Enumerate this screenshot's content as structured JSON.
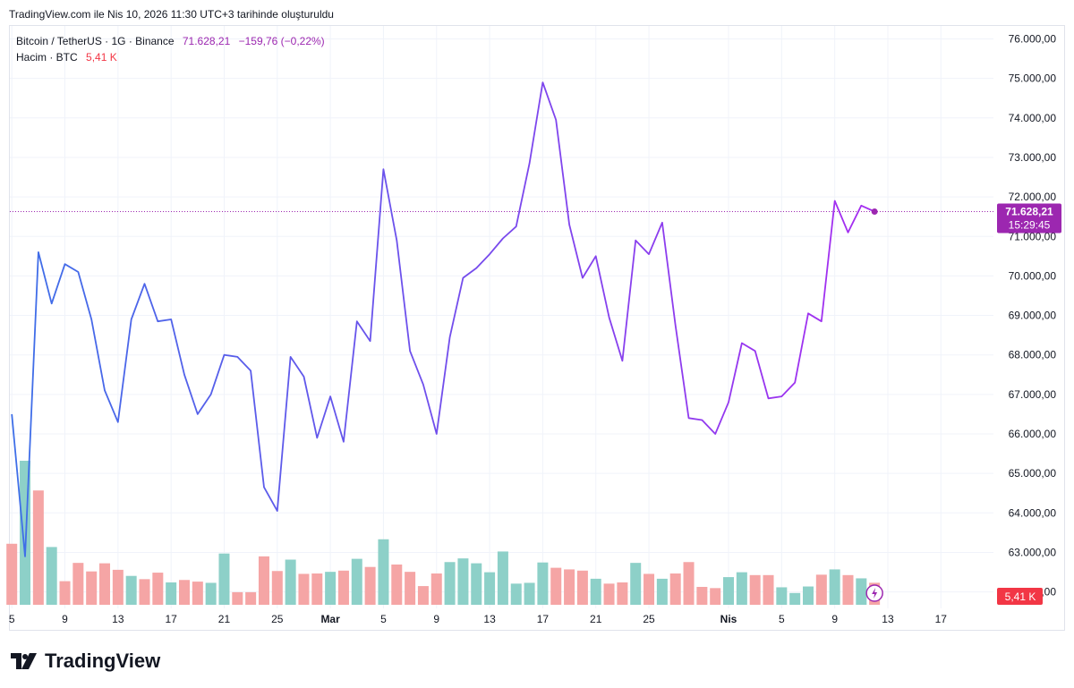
{
  "caption": "TradingView.com ile Nis 10, 2026 11:30 UTC+3 tarihinde oluşturuldu",
  "legend": {
    "symbol": "Bitcoin / TetherUS · 1G · Binance",
    "price": "71.628,21",
    "change": "−159,76 (−0,22%)",
    "volume_label": "Hacim · BTC",
    "volume_value": "5,41 K"
  },
  "brand": "TradingView",
  "colors": {
    "line_start": "#3d6fe8",
    "line_end": "#a42ef0",
    "volume_up": "#8dd0c8",
    "volume_down": "#f5a5a5",
    "price_tag": "#9c27b0",
    "volume_tag": "#f23645"
  },
  "chart_data": {
    "type": "line",
    "x_ticks": [
      "5",
      "9",
      "13",
      "17",
      "21",
      "25",
      "Mar",
      "5",
      "9",
      "13",
      "17",
      "21",
      "25",
      "Nis",
      "5",
      "9",
      "13",
      "17"
    ],
    "y_ticks": [
      "76.000,00",
      "75.000,00",
      "74.000,00",
      "73.000,00",
      "72.000,00",
      "71.000,00",
      "70.000,00",
      "69.000,00",
      "68.000,00",
      "67.000,00",
      "66.000,00",
      "65.000,00",
      "64.000,00",
      "63.000,00",
      "62.000,00"
    ],
    "ylim": [
      61700,
      76300
    ],
    "price_label": "71.628,21",
    "countdown": "15:29:45",
    "volume_label": "5,41 K",
    "series": [
      {
        "values": [
          66500,
          62900,
          70600,
          69300,
          70300,
          70100,
          68900,
          67100,
          66300,
          68900,
          69800,
          68850,
          68900,
          67500,
          66500,
          67000,
          68000,
          67950,
          67600,
          64650,
          64050,
          67950,
          67450,
          65900,
          66950,
          65800,
          68850,
          68350,
          72700,
          70900,
          68100,
          67250,
          66000,
          68450,
          69950,
          70200,
          70550,
          70950,
          71250,
          72850,
          74900,
          73950,
          71300,
          69950,
          70500,
          68950,
          67850,
          70900,
          70550,
          71350,
          68750,
          66400,
          66350,
          66000,
          66800,
          68300,
          68100,
          66900,
          66950,
          67300,
          69050,
          68850,
          71900,
          71100,
          71780,
          71628
        ]
      }
    ],
    "volume": {
      "values": [
        15,
        35.4,
        28.1,
        14.2,
        5.8,
        10.3,
        8.2,
        10.2,
        8.6,
        7.1,
        6.3,
        7.9,
        5.5,
        6.1,
        5.7,
        5.4,
        12.6,
        3.1,
        3.1,
        11.9,
        8.3,
        11.1,
        7.6,
        7.7,
        8.1,
        8.4,
        11.3,
        9.3,
        16.1,
        9.9,
        8.1,
        4.6,
        7.7,
        10.5,
        11.4,
        10.2,
        8.0,
        13.1,
        5.2,
        5.4,
        10.4,
        9.1,
        8.7,
        8.4,
        6.4,
        5.2,
        5.5,
        10.3,
        7.6,
        6.4,
        7.7,
        10.5,
        4.4,
        4.1,
        6.8,
        8.0,
        7.3,
        7.3,
        4.3,
        2.9,
        4.5,
        7.4,
        8.7,
        7.3,
        6.5,
        5.41
      ],
      "up": [
        false,
        true,
        false,
        true,
        false,
        false,
        false,
        false,
        false,
        true,
        false,
        false,
        true,
        false,
        false,
        true,
        true,
        false,
        false,
        false,
        false,
        true,
        false,
        false,
        true,
        false,
        true,
        false,
        true,
        false,
        false,
        false,
        false,
        true,
        true,
        true,
        true,
        true,
        true,
        true,
        true,
        false,
        false,
        false,
        true,
        false,
        false,
        true,
        false,
        true,
        false,
        false,
        false,
        false,
        true,
        true,
        false,
        false,
        true,
        true,
        true,
        false,
        true,
        false,
        true,
        false
      ]
    }
  }
}
